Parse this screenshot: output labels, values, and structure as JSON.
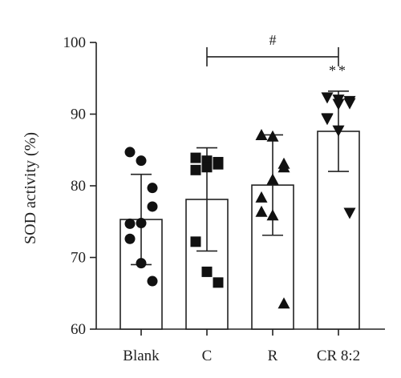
{
  "chart_data": {
    "type": "bar",
    "title": "",
    "xlabel": "",
    "ylabel": "SOD activity (%)",
    "ylim": [
      60,
      100
    ],
    "yticks": [
      60,
      70,
      80,
      90,
      100
    ],
    "grid": false,
    "legend": "none",
    "categories": [
      "Blank",
      "C",
      "R",
      "CR 8:2"
    ],
    "values": [
      75.3,
      78.1,
      80.1,
      87.6
    ],
    "error_sd": [
      6.3,
      7.2,
      7.0,
      5.6
    ],
    "points": [
      [
        84.7,
        83.5,
        79.7,
        77.1,
        74.8,
        74.7,
        72.6,
        69.2,
        66.7
      ],
      [
        83.9,
        83.5,
        83.3,
        83.0,
        82.6,
        82.2,
        72.2,
        68.0,
        66.5
      ],
      [
        87.1,
        86.9,
        83.1,
        82.6,
        80.9,
        78.4,
        76.4,
        75.9,
        63.6
      ],
      [
        92.3,
        92.0,
        91.8,
        91.5,
        91.4,
        89.3,
        89.4,
        87.7,
        76.2
      ]
    ],
    "markers": [
      "circle",
      "square",
      "triangle-up",
      "triangle-down"
    ],
    "comparisons": [
      {
        "from": "C",
        "to": "CR 8:2",
        "y": 98.0,
        "label": "#"
      }
    ],
    "significance": [
      {
        "category": "CR 8:2",
        "label": "**"
      }
    ],
    "colors": {
      "bar_fill": "#ffffff",
      "stroke": "#222222",
      "marker": "#111111"
    }
  }
}
